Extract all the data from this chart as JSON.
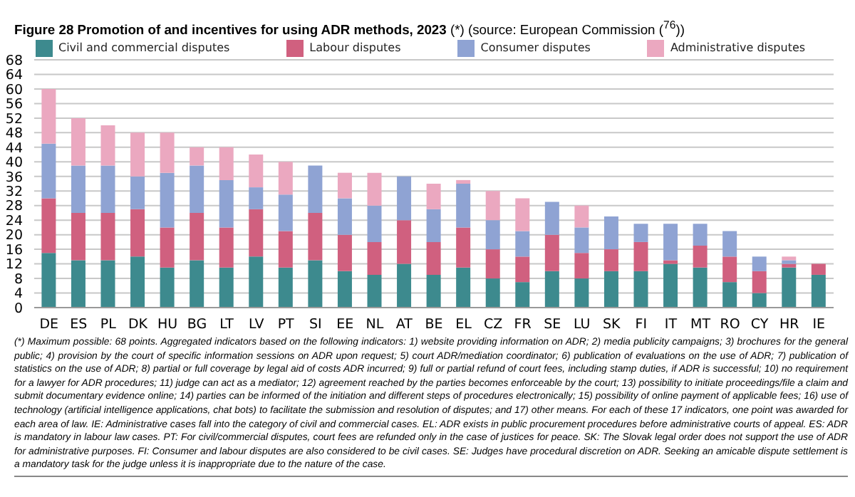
{
  "chart_data": {
    "type": "bar",
    "title": "Figure 28 Promotion of and incentives for using ADR methods, 2023",
    "subtitle": "(*) (source: European Commission ($^{76}$))",
    "categories": [
      "DE",
      "ES",
      "PL",
      "DK",
      "HU",
      "BG",
      "LT",
      "LV",
      "PT",
      "SI",
      "EE",
      "NL",
      "AT",
      "BE",
      "EL",
      "CZ",
      "FR",
      "SE",
      "LU",
      "SK",
      "FI",
      "IT",
      "MT",
      "RO",
      "CY",
      "HR",
      "IE"
    ],
    "stacked": true,
    "legend": "top",
    "grid": "y",
    "ylim": [
      0,
      68
    ],
    "yticks": [
      0,
      4,
      8,
      12,
      16,
      20,
      24,
      28,
      32,
      36,
      40,
      44,
      48,
      52,
      56,
      60,
      64,
      68
    ],
    "series": [
      {
        "name": "Civil and commercial disputes",
        "color": "#3d8a8e",
        "values": [
          15,
          13,
          13,
          14,
          11,
          13,
          11,
          14,
          11,
          13,
          10,
          9,
          12,
          9,
          11,
          8,
          7,
          10,
          8,
          10,
          10,
          12,
          11,
          7,
          4,
          11,
          9
        ]
      },
      {
        "name": "Labour disputes",
        "color": "#d0607f",
        "values": [
          15,
          13,
          13,
          13,
          11,
          13,
          11,
          13,
          10,
          13,
          10,
          9,
          12,
          9,
          11,
          8,
          7,
          10,
          7,
          6,
          8,
          1,
          6,
          7,
          6,
          1,
          3
        ]
      },
      {
        "name": "Consumer disputes",
        "color": "#8fa3d3",
        "values": [
          15,
          13,
          13,
          9,
          15,
          13,
          13,
          6,
          10,
          13,
          10,
          10,
          12,
          9,
          12,
          8,
          7,
          9,
          7,
          9,
          5,
          10,
          6,
          7,
          4,
          1,
          0
        ]
      },
      {
        "name": "Administrative disputes",
        "color": "#eba8c0",
        "values": [
          15,
          13,
          11,
          12,
          11,
          5,
          9,
          9,
          9,
          0,
          7,
          9,
          0,
          7,
          1,
          8,
          9,
          0,
          6,
          0,
          0,
          0,
          0,
          0,
          0,
          1,
          0
        ]
      }
    ],
    "annotations": [
      "(*) Maximum possible: 68 points. Aggregated indicators based on the following indicators: 1) website providing information on ADR; 2) media publicity campaigns; 3) brochures for the general public; 4) provision by the court of specific information sessions on ADR upon request; 5) court ADR/mediation coordinator; 6) publication of evaluations on the use of ADR; 7) publication of statistics on the use of ADR; 8) partial or full coverage by legal aid of costs ADR incurred; 9) full or partial refund of court fees, including stamp duties, if ADR is successful; 10) no requirement for a lawyer for ADR procedures; 11) judge can act as a mediator; 12) agreement reached by the parties becomes enforceable by the court; 13) possibility to initiate proceedings/file a claim and submit documentary evidence online; 14) parties can be informed of the initiation and different steps of procedures electronically; 15) possibility of online payment of applicable fees; 16) use of technology (artificial intelligence applications, chat bots) to facilitate the submission and resolution of disputes; and 17) other means. For each of these 17 indicators, one point was awarded for each area of law. IE: Administrative cases fall into the category of civil and commercial cases. EL: ADR exists in public procurement procedures before administrative courts of appeal. ES: ADR is mandatory in labour law cases. PT: For civil/commercial disputes, court fees are refunded only in the case of justices for peace. SK: The Slovak legal order does not support the use of ADR for administrative purposes. FI: Consumer and labour disputes are also considered to be civil cases. SE: Judges have procedural discretion on ADR. Seeking an amicable dispute settlement is a mandatory task for the judge unless it is inappropriate due to the nature of the case."
    ]
  }
}
